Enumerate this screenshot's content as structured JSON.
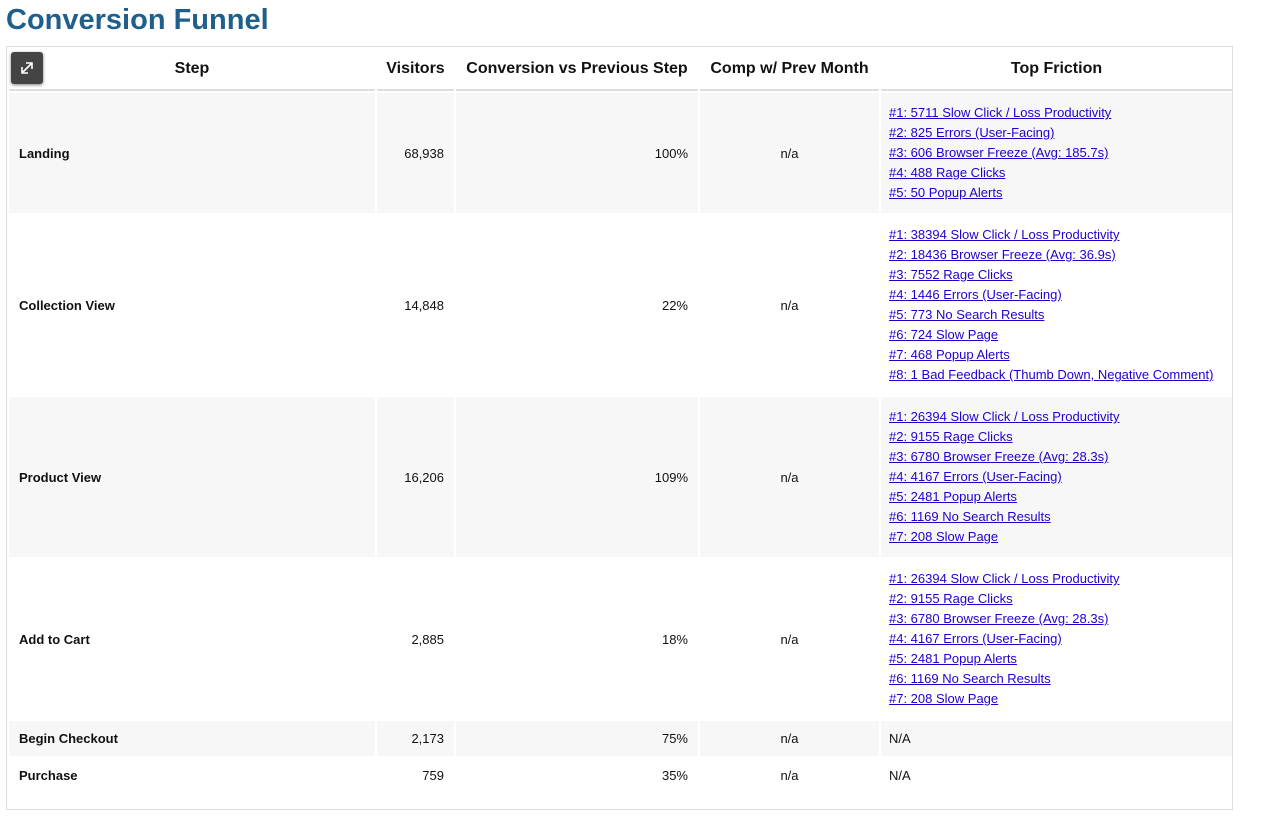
{
  "title": "Conversion Funnel",
  "table": {
    "headers": [
      "Step",
      "Visitors",
      "Conversion vs Previous Step",
      "Comp w/ Prev Month",
      "Top Friction"
    ],
    "rows": [
      {
        "step": "Landing",
        "visitors": "68,938",
        "conversion": "100%",
        "comp": "n/a",
        "friction": [
          "#1: 5711 Slow Click / Loss Productivity",
          "#2: 825 Errors (User-Facing)",
          "#3: 606 Browser Freeze (Avg: 185.7s)",
          "#4: 488 Rage Clicks",
          "#5: 50 Popup Alerts"
        ]
      },
      {
        "step": "Collection View",
        "visitors": "14,848",
        "conversion": "22%",
        "comp": "n/a",
        "friction": [
          "#1: 38394 Slow Click / Loss Productivity",
          "#2: 18436 Browser Freeze (Avg: 36.9s)",
          "#3: 7552 Rage Clicks",
          "#4: 1446 Errors (User-Facing)",
          "#5: 773 No Search Results",
          "#6: 724 Slow Page",
          "#7: 468 Popup Alerts",
          "#8: 1 Bad Feedback (Thumb Down, Negative Comment)"
        ]
      },
      {
        "step": "Product View",
        "visitors": "16,206",
        "conversion": "109%",
        "comp": "n/a",
        "friction": [
          "#1: 26394 Slow Click / Loss Productivity",
          "#2: 9155 Rage Clicks",
          "#3: 6780 Browser Freeze (Avg: 28.3s)",
          "#4: 4167 Errors (User-Facing)",
          "#5: 2481 Popup Alerts",
          "#6: 1169 No Search Results",
          "#7: 208 Slow Page"
        ]
      },
      {
        "step": "Add to Cart",
        "visitors": "2,885",
        "conversion": "18%",
        "comp": "n/a",
        "friction": [
          "#1: 26394 Slow Click / Loss Productivity",
          "#2: 9155 Rage Clicks",
          "#3: 6780 Browser Freeze (Avg: 28.3s)",
          "#4: 4167 Errors (User-Facing)",
          "#5: 2481 Popup Alerts",
          "#6: 1169 No Search Results",
          "#7: 208 Slow Page"
        ]
      },
      {
        "step": "Begin Checkout",
        "visitors": "2,173",
        "conversion": "75%",
        "comp": "n/a",
        "friction": "N/A"
      },
      {
        "step": "Purchase",
        "visitors": "759",
        "conversion": "35%",
        "comp": "n/a",
        "friction": "N/A"
      }
    ]
  }
}
